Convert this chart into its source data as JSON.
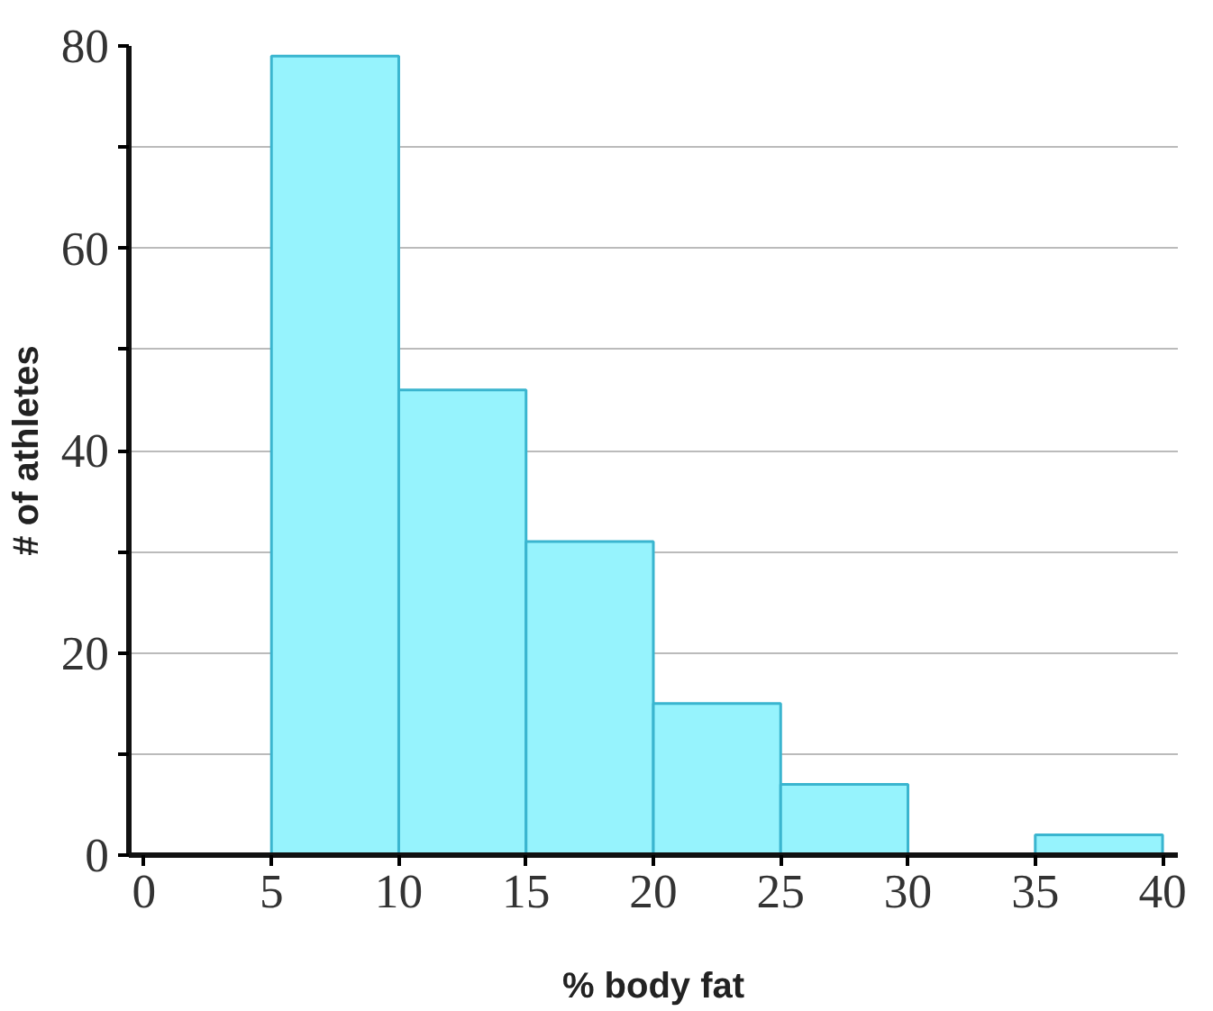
{
  "chart_data": {
    "type": "histogram",
    "xlabel": "% body fat",
    "ylabel": "# of athletes",
    "bins": [
      0,
      5,
      10,
      15,
      20,
      25,
      30,
      35,
      40
    ],
    "values": [
      0,
      79,
      46,
      31,
      15,
      7,
      0,
      2
    ],
    "color": "#96f3fd",
    "xlim": [
      -0.6,
      40.6
    ],
    "ylim": [
      0,
      80
    ],
    "xticks": [
      0,
      5,
      10,
      15,
      20,
      25,
      30,
      35,
      40
    ],
    "yticks": [
      0,
      {
        "value": 10,
        "label": null
      },
      20,
      {
        "value": 30,
        "label": null
      },
      40,
      {
        "value": 50,
        "label": null
      },
      60,
      {
        "value": 70,
        "label": null
      },
      80
    ],
    "grid": "y"
  }
}
